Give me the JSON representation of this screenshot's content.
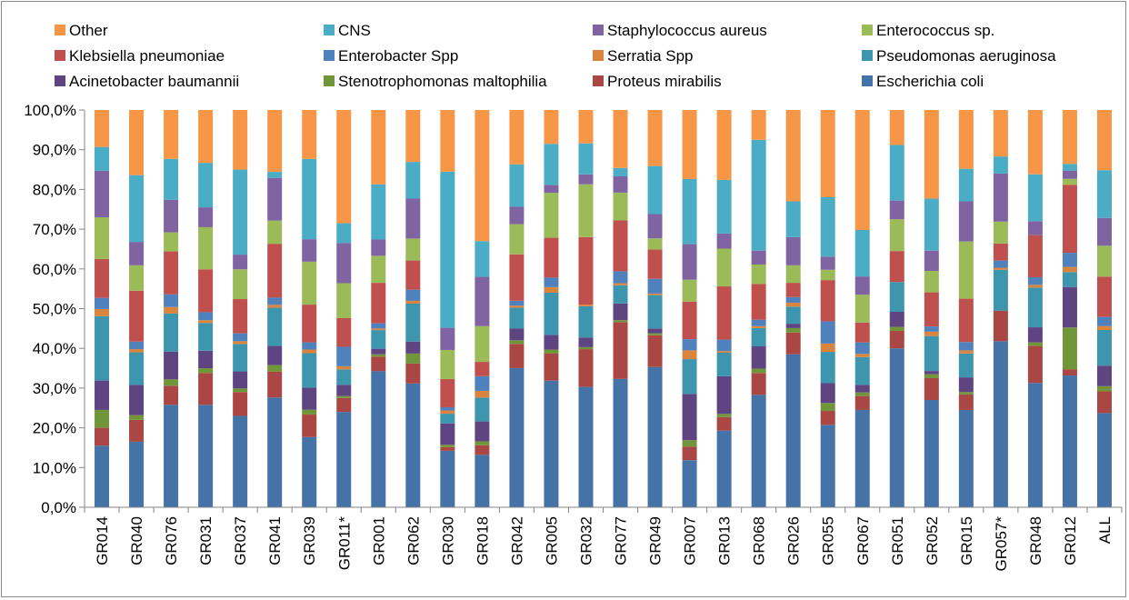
{
  "chart_data": {
    "type": "bar",
    "stacked": true,
    "percent": true,
    "ylim": [
      0,
      100
    ],
    "yticks": [
      "0,0%",
      "10,0%",
      "20,0%",
      "30,0%",
      "40,0%",
      "50,0%",
      "60,0%",
      "70,0%",
      "80,0%",
      "90,0%",
      "100,0%"
    ],
    "title": "",
    "xlabel": "",
    "ylabel": "",
    "grid": false,
    "legend_position": "top",
    "categories": [
      "GR014",
      "GR040",
      "GR076",
      "GR031",
      "GR037",
      "GR041",
      "GR039",
      "GR011*",
      "GR001",
      "GR062",
      "GR030",
      "GR018",
      "GR042",
      "GR005",
      "GR032",
      "GR077",
      "GR049",
      "GR007",
      "GR013",
      "GR068",
      "GR026",
      "GR055",
      "GR067",
      "GR051",
      "GR052",
      "GR015",
      "GR057*",
      "GR048",
      "GR012",
      "ALL"
    ],
    "series": [
      {
        "name": "Escherichia coli",
        "color": "#4572a7",
        "values": [
          15.5,
          16.5,
          25.8,
          25.8,
          23.0,
          27.5,
          17.5,
          24.0,
          34.3,
          31.0,
          14.0,
          13.2,
          34.5,
          31.8,
          30.3,
          32.3,
          35.3,
          11.8,
          19.3,
          28.3,
          38.5,
          20.8,
          24.5,
          40.0,
          27.0,
          24.5,
          41.8,
          31.3,
          33.5,
          23.8
        ]
      },
      {
        "name": "Proteus mirabilis",
        "color": "#aa4643",
        "values": [
          4.5,
          5.5,
          4.8,
          8.0,
          6.0,
          6.5,
          5.6,
          3.5,
          3.6,
          5.0,
          0.9,
          2.4,
          6.0,
          6.8,
          9.5,
          14.3,
          8.0,
          3.4,
          3.4,
          5.5,
          5.5,
          3.5,
          3.5,
          4.4,
          5.5,
          3.9,
          7.7,
          9.3,
          1.6,
          5.5
        ]
      },
      {
        "name": "Stenotrophomonas maltophilia",
        "color": "#71963a",
        "values": [
          4.5,
          1.2,
          1.6,
          1.2,
          0.9,
          1.6,
          1.2,
          0.5,
          0.6,
          2.5,
          0.6,
          1.0,
          0.9,
          1.0,
          0.5,
          0.5,
          0.5,
          1.6,
          0.8,
          1.1,
          1.1,
          2.0,
          0.9,
          1.0,
          1.0,
          0.6,
          0.0,
          0.9,
          10.6,
          1.3
        ]
      },
      {
        "name": "Acinetobacter baumannii",
        "color": "#5e4582",
        "values": [
          7.4,
          7.6,
          7.0,
          4.4,
          4.3,
          4.8,
          5.5,
          2.8,
          1.4,
          3.0,
          5.3,
          5.0,
          2.9,
          3.7,
          2.4,
          4.2,
          1.2,
          11.6,
          9.5,
          5.6,
          1.1,
          5.0,
          1.9,
          3.8,
          0.8,
          3.7,
          0.0,
          3.8,
          10.3,
          5.2
        ]
      },
      {
        "name": "Pseudomonas aeruginosa",
        "color": "#3d96ae",
        "values": [
          16.2,
          8.2,
          9.6,
          7.0,
          6.9,
          9.6,
          8.6,
          3.9,
          4.7,
          9.5,
          2.4,
          6.0,
          5.2,
          10.6,
          7.9,
          4.6,
          8.4,
          8.7,
          5.9,
          4.6,
          4.3,
          7.9,
          7.0,
          7.5,
          8.8,
          6.0,
          10.3,
          10.0,
          3.8,
          9.0
        ]
      },
      {
        "name": "Serratia Spp",
        "color": "#db843d",
        "values": [
          1.8,
          0.8,
          1.6,
          0.7,
          0.7,
          0.7,
          0.9,
          0.8,
          0.4,
          0.7,
          0.8,
          1.7,
          0.5,
          1.4,
          0.4,
          0.5,
          0.4,
          2.2,
          0.4,
          0.5,
          1.0,
          2.1,
          0.8,
          0.0,
          1.1,
          0.8,
          0.5,
          0.7,
          1.3,
          1.0
        ]
      },
      {
        "name": "Enterobacter Spp",
        "color": "#4f81bd",
        "values": [
          2.8,
          1.9,
          3.2,
          2.0,
          2.0,
          1.8,
          1.8,
          4.9,
          1.3,
          2.8,
          0.8,
          3.7,
          1.2,
          2.4,
          0.0,
          3.0,
          3.7,
          2.8,
          2.9,
          1.6,
          1.4,
          5.6,
          2.9,
          0.0,
          1.3,
          2.1,
          1.8,
          1.9,
          3.6,
          2.3
        ]
      },
      {
        "name": "Klebsiella pneumoniae",
        "color": "#c0504d",
        "values": [
          9.8,
          12.8,
          10.8,
          10.8,
          8.6,
          13.5,
          9.4,
          7.2,
          10.2,
          7.3,
          7.0,
          3.6,
          11.5,
          10.0,
          17.0,
          12.8,
          7.4,
          9.4,
          13.4,
          9.0,
          3.6,
          10.4,
          5.0,
          7.8,
          8.6,
          10.9,
          4.3,
          10.6,
          17.3,
          10.2
        ]
      },
      {
        "name": "Enterococcus sp.",
        "color": "#9bbb59",
        "values": [
          10.5,
          6.4,
          4.8,
          10.6,
          7.5,
          5.8,
          10.7,
          8.8,
          6.8,
          5.5,
          7.2,
          9.0,
          7.5,
          11.3,
          13.3,
          7.0,
          2.8,
          5.5,
          9.5,
          4.9,
          4.4,
          2.6,
          7.0,
          8.0,
          5.4,
          14.4,
          5.5,
          0.0,
          1.5,
          7.8
        ]
      },
      {
        "name": "Staphylococcus aureus",
        "color": "#8064a2",
        "values": [
          11.7,
          5.9,
          8.2,
          5.0,
          3.7,
          10.7,
          5.6,
          10.1,
          4.1,
          10.0,
          5.5,
          12.4,
          4.3,
          2.0,
          2.5,
          4.1,
          6.1,
          8.9,
          3.8,
          3.5,
          7.1,
          3.3,
          4.6,
          4.7,
          5.1,
          10.1,
          12.1,
          3.5,
          2.1,
          7.0
        ]
      },
      {
        "name": "CNS",
        "color": "#4bacc6",
        "values": [
          6.0,
          16.8,
          10.3,
          11.2,
          21.4,
          1.5,
          20.0,
          5.0,
          13.9,
          9.2,
          38.7,
          9.0,
          10.5,
          10.3,
          7.8,
          2.1,
          12.1,
          16.3,
          13.5,
          27.9,
          9.0,
          15.0,
          11.7,
          14.0,
          13.1,
          8.2,
          4.3,
          11.8,
          1.7,
          12.1
        ]
      },
      {
        "name": "Other",
        "color": "#f79646",
        "values": [
          9.3,
          16.4,
          12.3,
          13.3,
          15.0,
          15.5,
          12.2,
          28.5,
          18.7,
          13.0,
          15.3,
          33.0,
          13.5,
          8.5,
          8.4,
          14.6,
          14.1,
          17.3,
          17.6,
          7.5,
          23.0,
          22.0,
          30.2,
          8.8,
          22.3,
          14.8,
          11.7,
          16.2,
          13.7,
          15.2
        ]
      }
    ],
    "legend_order": [
      "Other",
      "CNS",
      "Staphylococcus aureus",
      "Enterococcus sp.",
      "Klebsiella pneumoniae",
      "Enterobacter Spp",
      "Serratia Spp",
      "Pseudomonas aeruginosa",
      "Acinetobacter baumannii",
      "Stenotrophomonas maltophilia",
      "Proteus mirabilis",
      "Escherichia coli"
    ]
  }
}
